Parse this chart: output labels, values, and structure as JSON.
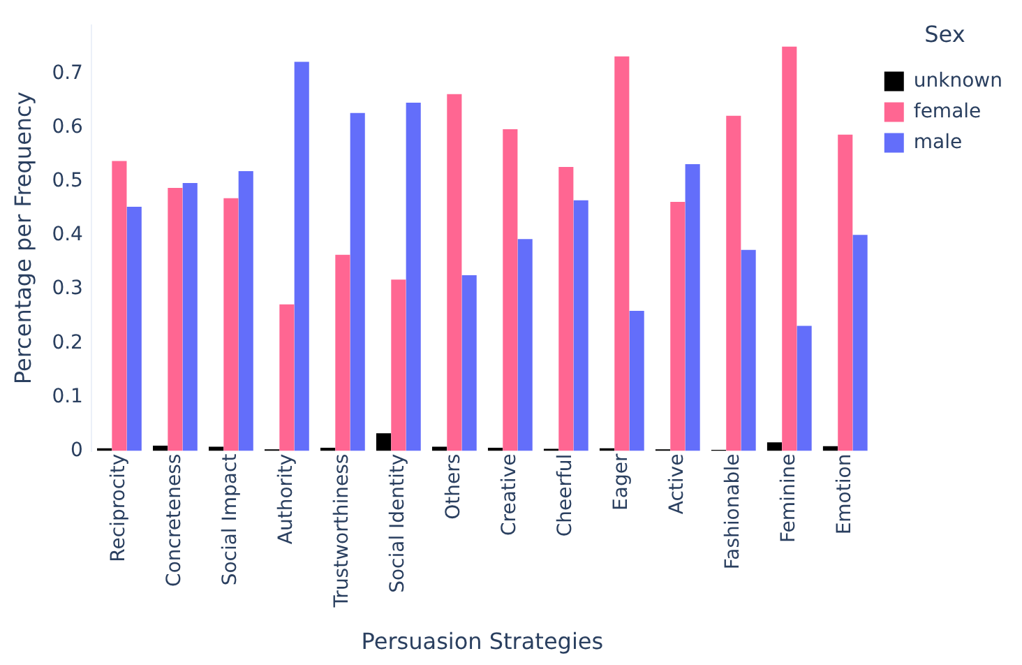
{
  "chart_data": {
    "type": "bar",
    "xlabel": "Persuasion Strategies",
    "ylabel": "Percentage per Frequency",
    "legend_title": "Sex",
    "categories": [
      "Reciprocity",
      "Concreteness",
      "Social Impact",
      "Authority",
      "Trustworthiness",
      "Social Identity",
      "Others",
      "Creative",
      "Cheerful",
      "Eager",
      "Active",
      "Fashionable",
      "Feminine",
      "Emotion"
    ],
    "series": [
      {
        "name": "unknown",
        "color": "#000000",
        "values": [
          0.005,
          0.01,
          0.008,
          0.003,
          0.006,
          0.033,
          0.008,
          0.006,
          0.004,
          0.005,
          0.003,
          0.002,
          0.016,
          0.009
        ]
      },
      {
        "name": "female",
        "color": "#ff6692",
        "values": [
          0.538,
          0.488,
          0.469,
          0.272,
          0.364,
          0.318,
          0.662,
          0.597,
          0.527,
          0.732,
          0.462,
          0.622,
          0.75,
          0.587
        ]
      },
      {
        "name": "male",
        "color": "#636efa",
        "values": [
          0.453,
          0.497,
          0.519,
          0.722,
          0.627,
          0.646,
          0.326,
          0.393,
          0.465,
          0.26,
          0.532,
          0.373,
          0.232,
          0.401
        ]
      }
    ],
    "ylim": [
      0,
      0.79
    ],
    "yticks": [
      0,
      0.1,
      0.2,
      0.3,
      0.4,
      0.5,
      0.6,
      0.7
    ],
    "grid": false,
    "legend": "top right"
  }
}
